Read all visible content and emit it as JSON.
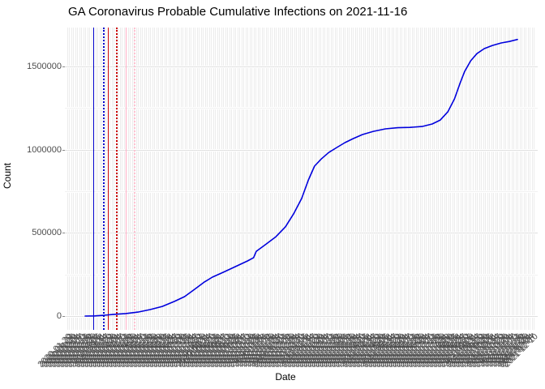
{
  "title": "GA Coronavirus Probable Cumulative Infections on 2021-11-16",
  "chart_data": {
    "type": "line",
    "title": "GA Coronavirus Probable Cumulative Infections on 2021-11-16",
    "xlabel": "Date",
    "ylabel": "Count",
    "grid": true,
    "legend": "none",
    "x_range": [
      "2020-02-16",
      "2021-11-16"
    ],
    "ylim": [
      -82500,
      1732500
    ],
    "y_major_ticks": [
      0,
      500000,
      1000000,
      1500000
    ],
    "y_major_tick_labels": [
      "0",
      "500000",
      "1000000",
      "1500000"
    ],
    "y_minor_ticks": [
      250000,
      750000,
      1250000
    ],
    "x_ticks": {
      "first": "2020-01-20",
      "last": "2021-12-12",
      "step_days": 3,
      "label_format": "YYYY-MM-DD",
      "angle_deg": 45
    },
    "colors": {
      "curve": "#0000dd",
      "vline_blue": "#0000cc",
      "vline_red": "#cc0000",
      "vline_pink": "#ffaec5",
      "vline_pink_dotted": "#ffc3d2",
      "grid_v": "#ececec",
      "grid_h_major": "#e0e0e0",
      "grid_h_minor": "#f1f1f1",
      "axis_text": "#4d4d4d"
    },
    "vlines": [
      {
        "date": "2020-02-29",
        "color": "#0000cc",
        "style": "solid"
      },
      {
        "date": "2020-03-15",
        "color": "#0000cc",
        "style": "dotted"
      },
      {
        "date": "2020-03-22",
        "color": "#cc0000",
        "style": "solid"
      },
      {
        "date": "2020-04-03",
        "color": "#cc0000",
        "style": "dotted"
      },
      {
        "date": "2020-04-17",
        "color": "#ffaec5",
        "style": "solid"
      },
      {
        "date": "2020-04-29",
        "color": "#ffc3d2",
        "style": "dotted"
      }
    ],
    "series": [
      {
        "name": "probable-cumulative-infections",
        "color": "#0000dd",
        "points": [
          [
            "2020-02-16",
            0
          ],
          [
            "2020-03-01",
            1000
          ],
          [
            "2020-03-15",
            5000
          ],
          [
            "2020-03-29",
            10000
          ],
          [
            "2020-04-16",
            15000
          ],
          [
            "2020-05-04",
            24000
          ],
          [
            "2020-05-22",
            39000
          ],
          [
            "2020-06-09",
            58000
          ],
          [
            "2020-06-27",
            88000
          ],
          [
            "2020-07-12",
            117000
          ],
          [
            "2020-07-27",
            161000
          ],
          [
            "2020-08-10",
            204000
          ],
          [
            "2020-08-22",
            234000
          ],
          [
            "2020-09-07",
            263000
          ],
          [
            "2020-09-25",
            297000
          ],
          [
            "2020-10-13",
            331000
          ],
          [
            "2020-10-22",
            351000
          ],
          [
            "2020-10-26",
            389000
          ],
          [
            "2020-11-08",
            428000
          ],
          [
            "2020-11-24",
            477000
          ],
          [
            "2020-12-08",
            536000
          ],
          [
            "2020-12-20",
            613000
          ],
          [
            "2021-01-01",
            706000
          ],
          [
            "2021-01-11",
            818000
          ],
          [
            "2021-01-20",
            901000
          ],
          [
            "2021-01-30",
            944000
          ],
          [
            "2021-02-10",
            983000
          ],
          [
            "2021-02-22",
            1013000
          ],
          [
            "2021-03-06",
            1042000
          ],
          [
            "2021-03-18",
            1066000
          ],
          [
            "2021-04-01",
            1091000
          ],
          [
            "2021-04-17",
            1110000
          ],
          [
            "2021-05-05",
            1125000
          ],
          [
            "2021-05-23",
            1132000
          ],
          [
            "2021-06-10",
            1134000
          ],
          [
            "2021-06-28",
            1139000
          ],
          [
            "2021-07-13",
            1154000
          ],
          [
            "2021-07-25",
            1178000
          ],
          [
            "2021-08-05",
            1227000
          ],
          [
            "2021-08-15",
            1305000
          ],
          [
            "2021-08-23",
            1397000
          ],
          [
            "2021-08-30",
            1470000
          ],
          [
            "2021-09-08",
            1534000
          ],
          [
            "2021-09-17",
            1577000
          ],
          [
            "2021-09-28",
            1607000
          ],
          [
            "2021-10-10",
            1626000
          ],
          [
            "2021-10-23",
            1641000
          ],
          [
            "2021-11-04",
            1650000
          ],
          [
            "2021-11-16",
            1662000
          ]
        ]
      }
    ]
  }
}
